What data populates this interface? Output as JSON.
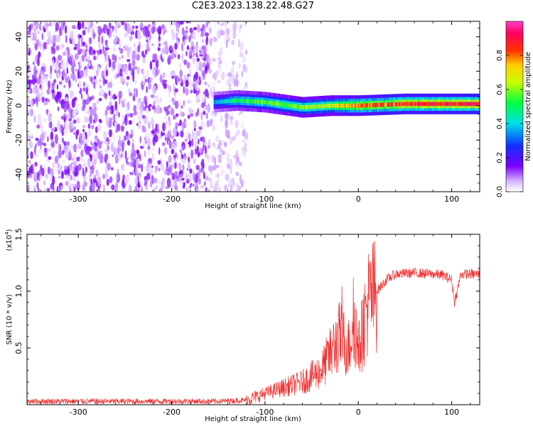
{
  "title": "C2E3.2023.138.22.48.G27",
  "colorbar": {
    "label": "Normalized spectral amplitude",
    "ticks": [
      "0.0",
      "0.2",
      "0.4",
      "0.6",
      "0.8"
    ],
    "tick_values": [
      0.0,
      0.2,
      0.4,
      0.6,
      0.8
    ],
    "range": [
      0,
      1
    ],
    "colormap": "rainbow (white-purple-blue-cyan-green-yellow-red-magenta)"
  },
  "chart_data": [
    {
      "type": "heatmap",
      "xlabel": "Height of straight line (km)",
      "ylabel": "Frequency (Hz)",
      "xlim": [
        -355,
        130
      ],
      "ylim": [
        -50,
        49
      ],
      "xticks": [
        -300,
        -200,
        -100,
        0,
        100
      ],
      "xtick_labels": [
        "-300",
        "-200",
        "-100",
        "0",
        "100"
      ],
      "yticks": [
        -40,
        -20,
        0,
        20,
        40
      ],
      "ytick_labels": [
        "-40",
        "-20",
        "0",
        "20",
        "40"
      ],
      "description_regions": [
        {
          "x_range": [
            -355,
            -160
          ],
          "y_range": [
            -50,
            49
          ],
          "amplitude": 0.1
        },
        {
          "x_range": [
            -160,
            -120
          ],
          "y_range": [
            -50,
            49
          ],
          "amplitude": 0.05
        },
        {
          "x_range": [
            -155,
            130
          ],
          "y_range": [
            -5,
            5
          ],
          "amplitude": 0.45
        }
      ],
      "ridge": {
        "x": [
          -155,
          -130,
          -100,
          -60,
          -30,
          0,
          50,
          100,
          130
        ],
        "y": [
          2,
          3,
          2,
          -1,
          0,
          0,
          1,
          1,
          1
        ],
        "amplitude": [
          0.35,
          0.5,
          0.55,
          0.6,
          0.65,
          0.8,
          0.85,
          0.9,
          0.9
        ]
      },
      "grid": false
    },
    {
      "type": "line",
      "xlabel": "Height of straight line (km)",
      "ylabel": "SNR (10 * v/v)",
      "y_multiplier": "(x10",
      "y_multiplier_exp": "4",
      "y_multiplier_close": ")",
      "xlim": [
        -355,
        130
      ],
      "ylim": [
        0,
        15000
      ],
      "xticks": [
        -300,
        -200,
        -100,
        0,
        100
      ],
      "xtick_labels": [
        "-300",
        "-200",
        "-100",
        "0",
        "100"
      ],
      "yticks": [
        5000,
        10000,
        15000
      ],
      "ytick_labels": [
        "0.5",
        "1.0",
        "1.5"
      ],
      "series": [
        {
          "color": "#ee3030",
          "x": [
            -355,
            -300,
            -250,
            -200,
            -150,
            -120,
            -100,
            -80,
            -60,
            -40,
            -30,
            -20,
            -10,
            -5,
            0,
            10,
            20,
            30,
            40,
            60,
            80,
            90,
            100,
            103,
            110,
            130
          ],
          "y": [
            300,
            300,
            300,
            300,
            300,
            400,
            1000,
            1500,
            2000,
            3000,
            4500,
            6000,
            5000,
            8000,
            4500,
            9000,
            10000,
            11000,
            11500,
            11600,
            11500,
            11400,
            11000,
            9000,
            11500,
            11500
          ]
        }
      ],
      "grid": false
    }
  ]
}
